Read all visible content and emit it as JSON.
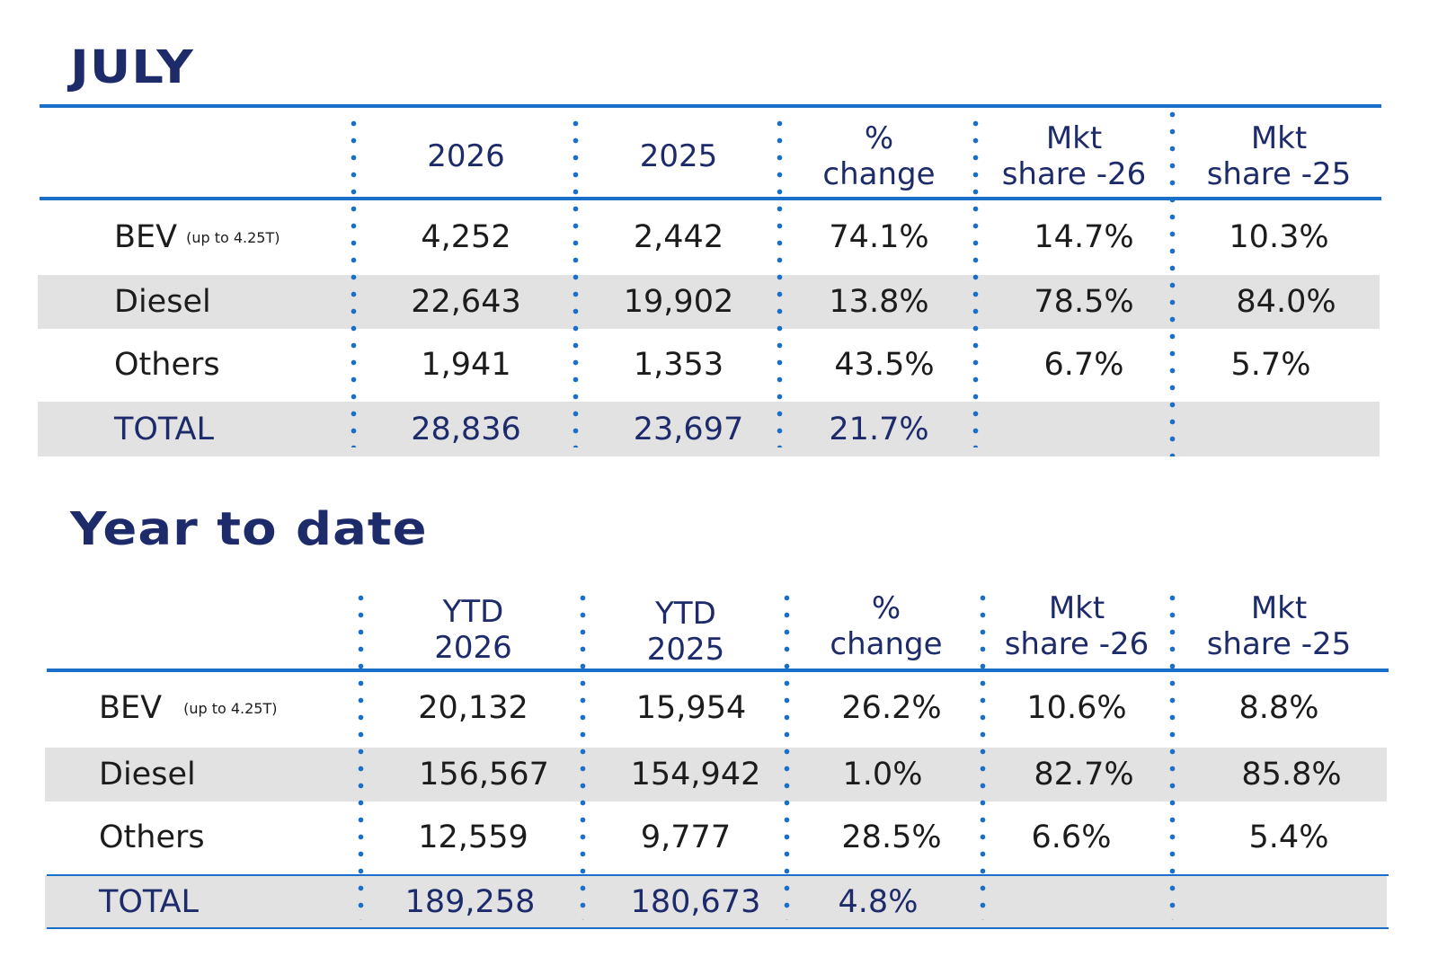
{
  "july": {
    "title": "JULY",
    "headers": [
      "2026",
      "2025",
      "%",
      "change",
      "Mkt",
      "share -26",
      "Mkt",
      "share -25"
    ],
    "rows": [
      {
        "label": "BEV",
        "note": "(up to 4.25T)",
        "y2026": "4,252",
        "y2025": "2,442",
        "pct": "74.1%",
        "share26": "14.7%",
        "share25": "10.3%"
      },
      {
        "label": "Diesel",
        "note": "",
        "y2026": "22,643",
        "y2025": "19,902",
        "pct": "13.8%",
        "share26": "78.5%",
        "share25": "84.0%"
      },
      {
        "label": "Others",
        "note": "",
        "y2026": "1,941",
        "y2025": "1,353",
        "pct": "43.5%",
        "share26": "6.7%",
        "share25": "5.7%"
      },
      {
        "label": "TOTAL",
        "note": "",
        "y2026": "28,836",
        "y2025": "23,697",
        "pct": "21.7%",
        "share26": "",
        "share25": ""
      }
    ]
  },
  "ytd": {
    "title": "Year to date",
    "headers": [
      "YTD",
      "2026",
      "YTD",
      "2025",
      "%",
      "change",
      "Mkt",
      "share -26",
      "Mkt",
      "share -25"
    ],
    "rows": [
      {
        "label": "BEV",
        "note": "(up to 4.25T)",
        "y2026": "20,132",
        "y2025": "15,954",
        "pct": "26.2%",
        "share26": "10.6%",
        "share25": "8.8%"
      },
      {
        "label": "Diesel",
        "note": "",
        "y2026": "156,567",
        "y2025": "154,942",
        "pct": "1.0%",
        "share26": "82.7%",
        "share25": "85.8%"
      },
      {
        "label": "Others",
        "note": "",
        "y2026": "12,559",
        "y2025": "9,777",
        "pct": "28.5%",
        "share26": "6.6%",
        "share25": "5.4%"
      },
      {
        "label": "TOTAL",
        "note": "",
        "y2026": "189,258",
        "y2025": "180,673",
        "pct": "4.8%",
        "share26": "",
        "share25": ""
      }
    ]
  }
}
